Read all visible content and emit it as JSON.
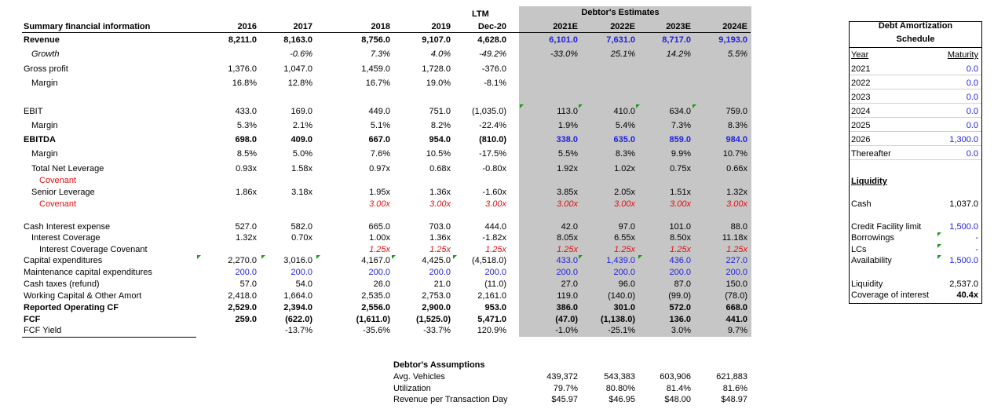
{
  "main": {
    "header": {
      "ltm_top": "LTM",
      "estimates_title": "Debtor's Estimates",
      "title": "Summary financial information",
      "years": [
        "2016",
        "2017",
        "2018",
        "2019",
        "Dec-20",
        "2021E",
        "2022E",
        "2023E",
        "2024E"
      ]
    },
    "rows": [
      {
        "label": "Revenue",
        "values": [
          "8,211.0",
          "8,163.0",
          "8,756.0",
          "9,107.0",
          "4,628.0",
          "6,101.0",
          "7,631.0",
          "8,717.0",
          "9,193.0"
        ]
      },
      {
        "label": "Growth",
        "values": [
          "",
          "-0.6%",
          "7.3%",
          "4.0%",
          "-49.2%",
          "-33.0%",
          "25.1%",
          "14.2%",
          "5.5%"
        ]
      },
      {
        "label": "Gross profit",
        "values": [
          "1,376.0",
          "1,047.0",
          "1,459.0",
          "1,728.0",
          "-376.0",
          "",
          "",
          "",
          ""
        ]
      },
      {
        "label": "Margin",
        "values": [
          "16.8%",
          "12.8%",
          "16.7%",
          "19.0%",
          "-8.1%",
          "",
          "",
          "",
          ""
        ]
      },
      {
        "label": "EBIT",
        "values": [
          "433.0",
          "169.0",
          "449.0",
          "751.0",
          "(1,035.0)",
          "113.0",
          "410.0",
          "634.0",
          "759.0"
        ]
      },
      {
        "label": "Margin",
        "values": [
          "5.3%",
          "2.1%",
          "5.1%",
          "8.2%",
          "-22.4%",
          "1.9%",
          "5.4%",
          "7.3%",
          "8.3%"
        ]
      },
      {
        "label": "EBITDA",
        "values": [
          "698.0",
          "409.0",
          "667.0",
          "954.0",
          "(810.0)",
          "338.0",
          "635.0",
          "859.0",
          "984.0"
        ]
      },
      {
        "label": "Margin",
        "values": [
          "8.5%",
          "5.0%",
          "7.6%",
          "10.5%",
          "-17.5%",
          "5.5%",
          "8.3%",
          "9.9%",
          "10.7%"
        ]
      },
      {
        "label": "Total Net Leverage",
        "values": [
          "0.93x",
          "1.58x",
          "0.97x",
          "0.68x",
          "-0.80x",
          "1.92x",
          "1.02x",
          "0.75x",
          "0.66x"
        ]
      },
      {
        "label": "Covenant",
        "values": [
          "",
          "",
          "",
          "",
          "",
          "",
          "",
          "",
          ""
        ]
      },
      {
        "label": "Senior Leverage",
        "values": [
          "1.86x",
          "3.18x",
          "1.95x",
          "1.36x",
          "-1.60x",
          "3.85x",
          "2.05x",
          "1.51x",
          "1.32x"
        ]
      },
      {
        "label": "Covenant",
        "values": [
          "",
          "",
          "3.00x",
          "3.00x",
          "3.00x",
          "3.00x",
          "3.00x",
          "3.00x",
          "3.00x"
        ]
      },
      {
        "label": "Cash Interest expense",
        "values": [
          "527.0",
          "582.0",
          "665.0",
          "703.0",
          "444.0",
          "42.0",
          "97.0",
          "101.0",
          "88.0"
        ]
      },
      {
        "label": "Interest Coverage",
        "values": [
          "1.32x",
          "0.70x",
          "1.00x",
          "1.36x",
          "-1.82x",
          "8.05x",
          "6.55x",
          "8.50x",
          "11.18x"
        ]
      },
      {
        "label": "Interest Coverage Covenant",
        "values": [
          "",
          "",
          "1.25x",
          "1.25x",
          "1.25x",
          "1.25x",
          "1.25x",
          "1.25x",
          "1.25x"
        ]
      },
      {
        "label": "Capital expenditures",
        "values": [
          "2,270.0",
          "3,016.0",
          "4,167.0",
          "4,425.0",
          "(4,518.0)",
          "433.0",
          "1,439.0",
          "436.0",
          "227.0"
        ]
      },
      {
        "label": "Maintenance capital expenditures",
        "values": [
          "200.0",
          "200.0",
          "200.0",
          "200.0",
          "200.0",
          "200.0",
          "200.0",
          "200.0",
          "200.0"
        ]
      },
      {
        "label": "Cash taxes (refund)",
        "values": [
          "57.0",
          "54.0",
          "26.0",
          "21.0",
          "(11.0)",
          "27.0",
          "96.0",
          "87.0",
          "150.0"
        ]
      },
      {
        "label": "Working Capital & Other Amort",
        "values": [
          "2,418.0",
          "1,664.0",
          "2,535.0",
          "2,753.0",
          "2,161.0",
          "119.0",
          "(140.0)",
          "(99.0)",
          "(78.0)"
        ]
      },
      {
        "label": "Reported Operating CF",
        "values": [
          "2,529.0",
          "2,394.0",
          "2,556.0",
          "2,900.0",
          "953.0",
          "386.0",
          "301.0",
          "572.0",
          "668.0"
        ]
      },
      {
        "label": "FCF",
        "values": [
          "259.0",
          "(622.0)",
          "(1,611.0)",
          "(1,525.0)",
          "5,471.0",
          "(47.0)",
          "(1,138.0)",
          "136.0",
          "441.0"
        ]
      },
      {
        "label": "FCF Yield",
        "values": [
          "",
          "-13.7%",
          "-35.6%",
          "-33.7%",
          "120.9%",
          "-1.0%",
          "-25.1%",
          "3.0%",
          "9.7%"
        ]
      }
    ],
    "assumptions": {
      "title": "Debtor's Assumptions",
      "rows": [
        {
          "label": "Avg. Vehicles",
          "values": [
            "439,372",
            "543,383",
            "603,906",
            "621,883"
          ]
        },
        {
          "label": "Utilization",
          "values": [
            "79.7%",
            "80.80%",
            "81.4%",
            "81.6%"
          ]
        },
        {
          "label": "Revenue per Transaction Day",
          "values": [
            "$45.97",
            "$46.95",
            "$48.00",
            "$48.97"
          ]
        }
      ]
    }
  },
  "panel": {
    "title_line1": "Debt Amortization",
    "title_line2": "Schedule",
    "col_year": "Year",
    "col_maturity": "Maturity",
    "schedule": [
      {
        "year": "2021",
        "value": "0.0"
      },
      {
        "year": "2022",
        "value": "0.0"
      },
      {
        "year": "2023",
        "value": "0.0"
      },
      {
        "year": "2024",
        "value": "0.0"
      },
      {
        "year": "2025",
        "value": "0.0"
      },
      {
        "year": "2026",
        "value": "1,300.0"
      },
      {
        "year": "Thereafter",
        "value": "0.0"
      }
    ],
    "liquidity_title": "Liquidity",
    "liquidity": [
      {
        "label": "Cash",
        "value": "1,037.0"
      },
      {
        "label": "Credit Facility limit",
        "value": "1,500.0"
      },
      {
        "label": "Borrowings",
        "value": "-"
      },
      {
        "label": "LCs",
        "value": "-"
      },
      {
        "label": "Availability",
        "value": "1,500.0"
      },
      {
        "label": "Liquidity",
        "value": "2,537.0"
      },
      {
        "label": "Coverage of interest",
        "value": "40.4x"
      }
    ]
  },
  "colors": {
    "estimate_blue": "#1f1fe0",
    "covenant_red": "#e01010",
    "shade_gray": "#c6c6c6",
    "comment_green": "#1a9a1a"
  }
}
